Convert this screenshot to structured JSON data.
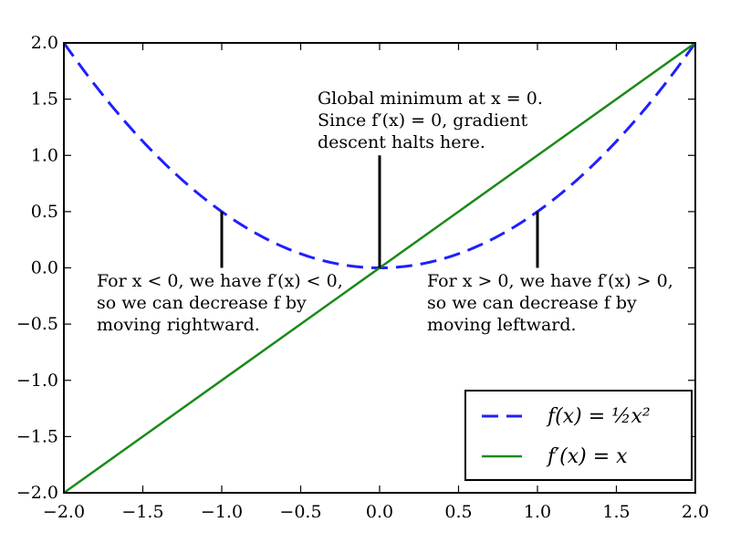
{
  "chart_data": {
    "type": "line",
    "xlim": [
      -2.0,
      2.0
    ],
    "ylim": [
      -2.0,
      2.0
    ],
    "xticks": [
      -2.0,
      -1.5,
      -1.0,
      -0.5,
      0.0,
      0.5,
      1.0,
      1.5,
      2.0
    ],
    "yticks": [
      -2.0,
      -1.5,
      -1.0,
      -0.5,
      0.0,
      0.5,
      1.0,
      1.5,
      2.0
    ],
    "xtick_labels": [
      "−2.0",
      "−1.5",
      "−1.0",
      "−0.5",
      "0.0",
      "0.5",
      "1.0",
      "1.5",
      "2.0"
    ],
    "ytick_labels": [
      "−2.0",
      "−1.5",
      "−1.0",
      "−0.5",
      "0.0",
      "0.5",
      "1.0",
      "1.5",
      "2.0"
    ],
    "grid": false,
    "legend_position": "bottom-right",
    "series": [
      {
        "name": "f(x) = ½x²",
        "color": "#1f1fff",
        "style": "dashed",
        "x": [
          -2.0,
          -1.75,
          -1.5,
          -1.25,
          -1.0,
          -0.75,
          -0.5,
          -0.25,
          0.0,
          0.25,
          0.5,
          0.75,
          1.0,
          1.25,
          1.5,
          1.75,
          2.0
        ],
        "y": [
          2.0,
          1.53125,
          1.125,
          0.78125,
          0.5,
          0.28125,
          0.125,
          0.03125,
          0.0,
          0.03125,
          0.125,
          0.28125,
          0.5,
          0.78125,
          1.125,
          1.53125,
          2.0
        ]
      },
      {
        "name": "f′(x) = x",
        "color": "#1a8a1a",
        "style": "solid",
        "x": [
          -2.0,
          2.0
        ],
        "y": [
          -2.0,
          2.0
        ]
      }
    ],
    "annotations": [
      {
        "lines": [
          "Global minimum at x = 0.",
          "Since f′(x) = 0, gradient",
          "descent halts here."
        ],
        "point": [
          0.0,
          0.0
        ],
        "arrow_top": [
          0.0,
          1.0
        ]
      },
      {
        "lines": [
          "For x < 0, we have f′(x) < 0,",
          "so we can decrease f by",
          "moving rightward."
        ],
        "point": [
          -1.0,
          0.5
        ],
        "arrow_bottom": [
          -1.0,
          0.0
        ]
      },
      {
        "lines": [
          "For x > 0, we have f′(x) > 0,",
          "so we can decrease f by",
          "moving leftward."
        ],
        "point": [
          1.0,
          0.5
        ],
        "arrow_bottom": [
          1.0,
          0.0
        ]
      }
    ]
  },
  "legend": {
    "items": [
      {
        "label": "f(x) = ½x²"
      },
      {
        "label": "f′(x) = x"
      }
    ]
  }
}
